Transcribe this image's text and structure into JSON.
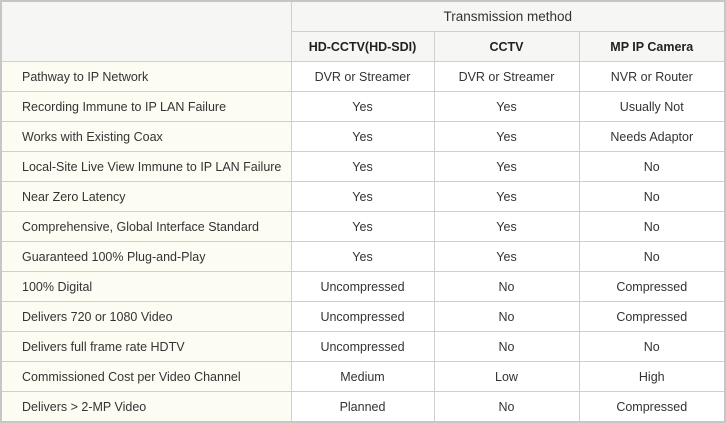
{
  "header": {
    "group_title": "Transmission method",
    "columns": [
      "HD-CCTV(HD-SDI)",
      "CCTV",
      "MP IP Camera"
    ]
  },
  "rows": [
    {
      "label": "Pathway to IP Network",
      "values": [
        "DVR or Streamer",
        "DVR or Streamer",
        "NVR or Router"
      ]
    },
    {
      "label": "Recording Immune to IP LAN Failure",
      "values": [
        "Yes",
        "Yes",
        "Usually Not"
      ]
    },
    {
      "label": "Works with Existing Coax",
      "values": [
        "Yes",
        "Yes",
        "Needs Adaptor"
      ]
    },
    {
      "label": "Local-Site Live View Immune to IP LAN Failure",
      "values": [
        "Yes",
        "Yes",
        "No"
      ]
    },
    {
      "label": "Near Zero Latency",
      "values": [
        "Yes",
        "Yes",
        "No"
      ]
    },
    {
      "label": "Comprehensive, Global Interface Standard",
      "values": [
        "Yes",
        "Yes",
        "No"
      ]
    },
    {
      "label": "Guaranteed 100% Plug-and-Play",
      "values": [
        "Yes",
        "Yes",
        "No"
      ]
    },
    {
      "label": "100% Digital",
      "values": [
        "Uncompressed",
        "No",
        "Compressed"
      ]
    },
    {
      "label": "Delivers 720 or 1080 Video",
      "values": [
        "Uncompressed",
        "No",
        "Compressed"
      ]
    },
    {
      "label": "Delivers full frame rate HDTV",
      "values": [
        "Uncompressed",
        "No",
        "No"
      ]
    },
    {
      "label": "Commissioned Cost per Video Channel",
      "values": [
        "Medium",
        "Low",
        "High"
      ]
    },
    {
      "label": "Delivers > 2-MP Video",
      "values": [
        "Planned",
        "No",
        "Compressed"
      ]
    }
  ]
}
